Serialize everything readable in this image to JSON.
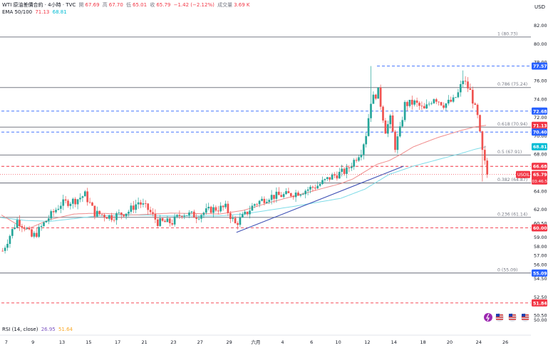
{
  "header": {
    "symbol": "WTI 原油差價合約 · 4小時 · TVC",
    "open_label": "開",
    "open": "67.69",
    "high_label": "高",
    "high": "67.70",
    "low_label": "低",
    "low": "65.01",
    "close_label": "收",
    "close": "65.79",
    "change": "−1.42 (−2.12%)",
    "volume_label": "成交量",
    "volume": "3.69 K",
    "ema_label": "EMA 50/100",
    "ema50": "71.13",
    "ema100": "68.81",
    "currency": "USD"
  },
  "rsi": {
    "label": "RSI (14, close)",
    "value": "26.95",
    "ma": "51.64"
  },
  "colors": {
    "up": "#26a69a",
    "down": "#ef5350",
    "ema50": "#f08c8c",
    "ema100": "#7fdce8",
    "trend": "#3f51b5",
    "fib": "#787b86",
    "blue_dash": "#2962ff",
    "red_dash": "#f23645"
  },
  "chart_data": {
    "type": "candlestick",
    "y_axis": {
      "min": 49.5,
      "max": 83.2,
      "ticks": [
        50.0,
        50.5,
        52.5,
        54.5,
        56.0,
        57.0,
        58.0,
        59.0,
        60.5,
        62.0,
        64.0,
        66.0,
        68.0,
        70.0,
        72.0,
        74.0,
        76.0,
        78.0,
        80.0,
        82.0
      ]
    },
    "x_axis": {
      "ticks": [
        {
          "label": "7",
          "idx": 2
        },
        {
          "label": "9",
          "idx": 13
        },
        {
          "label": "13",
          "idx": 25
        },
        {
          "label": "15",
          "idx": 36
        },
        {
          "label": "17",
          "idx": 48
        },
        {
          "label": "21",
          "idx": 59
        },
        {
          "label": "23",
          "idx": 71
        },
        {
          "label": "27",
          "idx": 82
        },
        {
          "label": "29",
          "idx": 94
        },
        {
          "label": "六月",
          "idx": 105
        },
        {
          "label": "4",
          "idx": 116
        },
        {
          "label": "6",
          "idx": 128
        },
        {
          "label": "10",
          "idx": 139
        },
        {
          "label": "12",
          "idx": 151
        },
        {
          "label": "14",
          "idx": 162
        },
        {
          "label": "18",
          "idx": 174
        },
        {
          "label": "20",
          "idx": 185
        },
        {
          "label": "24",
          "idx": 197
        },
        {
          "label": "26",
          "idx": 208
        }
      ],
      "visible_bars": 212
    },
    "price_labels": [
      {
        "value": 77.57,
        "text": "77.57",
        "color": "#2962ff"
      },
      {
        "value": 72.68,
        "text": "72.68",
        "color": "#2962ff"
      },
      {
        "value": 71.13,
        "text": "71.13",
        "color": "#f23645"
      },
      {
        "value": 70.4,
        "text": "70.40",
        "color": "#2962ff"
      },
      {
        "value": 68.81,
        "text": "68.81",
        "color": "#00bcd4"
      },
      {
        "value": 66.68,
        "text": "66.68",
        "color": "#f23645"
      },
      {
        "value": 60.0,
        "text": "60.00",
        "color": "#f23645"
      },
      {
        "value": 55.09,
        "text": "55.09",
        "color": "#2962ff"
      },
      {
        "value": 51.84,
        "text": "51.84",
        "color": "#f23645"
      }
    ],
    "last_price": {
      "symbol": "USOIL",
      "price": "65.79",
      "countdown": "03:46:54",
      "value": 65.79
    },
    "fib_levels": [
      {
        "value": 80.73,
        "text": "1 (80.73)"
      },
      {
        "value": 75.24,
        "text": "0.786 (75.24)"
      },
      {
        "value": 70.94,
        "text": "0.618 (70.94)"
      },
      {
        "value": 67.91,
        "text": "0.5 (67.91)"
      },
      {
        "value": 64.87,
        "text": "0.382 (64.87)"
      },
      {
        "value": 61.14,
        "text": "0.236 (61.14)"
      },
      {
        "value": 55.09,
        "text": "0 (55.09)"
      }
    ],
    "dashed_lines": [
      {
        "value": 77.57,
        "color": "#2962ff",
        "from_idx": 155
      },
      {
        "value": 72.68,
        "color": "#2962ff",
        "from_idx": 0
      },
      {
        "value": 70.4,
        "color": "#2962ff",
        "from_idx": 0
      },
      {
        "value": 66.68,
        "color": "#f23645",
        "from_idx": 0
      },
      {
        "value": 60.0,
        "color": "#f23645",
        "from_idx": 0
      },
      {
        "value": 51.84,
        "color": "#f23645",
        "from_idx": 0
      }
    ],
    "trendline": {
      "from": {
        "idx": 97,
        "value": 59.5
      },
      "to": {
        "idx": 166,
        "value": 66.7
      }
    },
    "ema_keypoints": {
      "ema50": [
        [
          0,
          61.4
        ],
        [
          10,
          59.8
        ],
        [
          20,
          60.9
        ],
        [
          30,
          61.5
        ],
        [
          40,
          61.6
        ],
        [
          55,
          61.4
        ],
        [
          70,
          61.6
        ],
        [
          90,
          61.5
        ],
        [
          100,
          61.9
        ],
        [
          110,
          62.7
        ],
        [
          120,
          63.4
        ],
        [
          130,
          64.1
        ],
        [
          140,
          64.8
        ],
        [
          145,
          65.3
        ],
        [
          155,
          66.9
        ],
        [
          160,
          67.3
        ],
        [
          165,
          68.0
        ],
        [
          170,
          68.8
        ],
        [
          180,
          69.8
        ],
        [
          190,
          70.6
        ],
        [
          196,
          71.0
        ],
        [
          200,
          71.13
        ]
      ],
      "ema100": [
        [
          0,
          61.1
        ],
        [
          10,
          60.8
        ],
        [
          20,
          60.7
        ],
        [
          30,
          61.0
        ],
        [
          40,
          61.3
        ],
        [
          55,
          61.4
        ],
        [
          70,
          61.3
        ],
        [
          90,
          61.3
        ],
        [
          100,
          61.5
        ],
        [
          120,
          62.3
        ],
        [
          140,
          63.2
        ],
        [
          150,
          64.2
        ],
        [
          160,
          65.8
        ],
        [
          170,
          66.7
        ],
        [
          180,
          67.4
        ],
        [
          190,
          68.1
        ],
        [
          195,
          68.5
        ],
        [
          200,
          68.81
        ]
      ]
    },
    "price_keypoints": [
      [
        0,
        57.5
      ],
      [
        3,
        59.2
      ],
      [
        6,
        60.8
      ],
      [
        9,
        60.2
      ],
      [
        12,
        59.0
      ],
      [
        14,
        59.4
      ],
      [
        18,
        60.8
      ],
      [
        24,
        62.6
      ],
      [
        30,
        63.0
      ],
      [
        34,
        63.6
      ],
      [
        38,
        61.6
      ],
      [
        45,
        61.2
      ],
      [
        52,
        61.8
      ],
      [
        56,
        62.8
      ],
      [
        60,
        62.0
      ],
      [
        64,
        60.6
      ],
      [
        70,
        60.6
      ],
      [
        74,
        61.6
      ],
      [
        80,
        61.3
      ],
      [
        86,
        62.0
      ],
      [
        92,
        62.2
      ],
      [
        96,
        60.4
      ],
      [
        100,
        61.4
      ],
      [
        104,
        62.6
      ],
      [
        110,
        63.4
      ],
      [
        118,
        63.6
      ],
      [
        124,
        64.0
      ],
      [
        130,
        64.6
      ],
      [
        136,
        65.6
      ],
      [
        142,
        66.2
      ],
      [
        148,
        68.4
      ],
      [
        150,
        70.2
      ],
      [
        152,
        73.8
      ],
      [
        155,
        74.8
      ],
      [
        158,
        70.6
      ],
      [
        160,
        71.8
      ],
      [
        162,
        68.8
      ],
      [
        164,
        70.6
      ],
      [
        166,
        73.4
      ],
      [
        170,
        73.6
      ],
      [
        174,
        72.8
      ],
      [
        178,
        74.2
      ],
      [
        182,
        73.4
      ],
      [
        186,
        73.8
      ],
      [
        188,
        74.6
      ],
      [
        190,
        76.1
      ],
      [
        193,
        74.8
      ],
      [
        196,
        72.0
      ],
      [
        198,
        68.2
      ],
      [
        200,
        65.79
      ]
    ],
    "spikes": [
      {
        "idx": 152,
        "high": 77.57
      },
      {
        "idx": 190,
        "high": 77.1
      },
      {
        "idx": 198,
        "low": 65.01
      }
    ],
    "legend": {
      "position": "top-left"
    },
    "grid": false
  }
}
